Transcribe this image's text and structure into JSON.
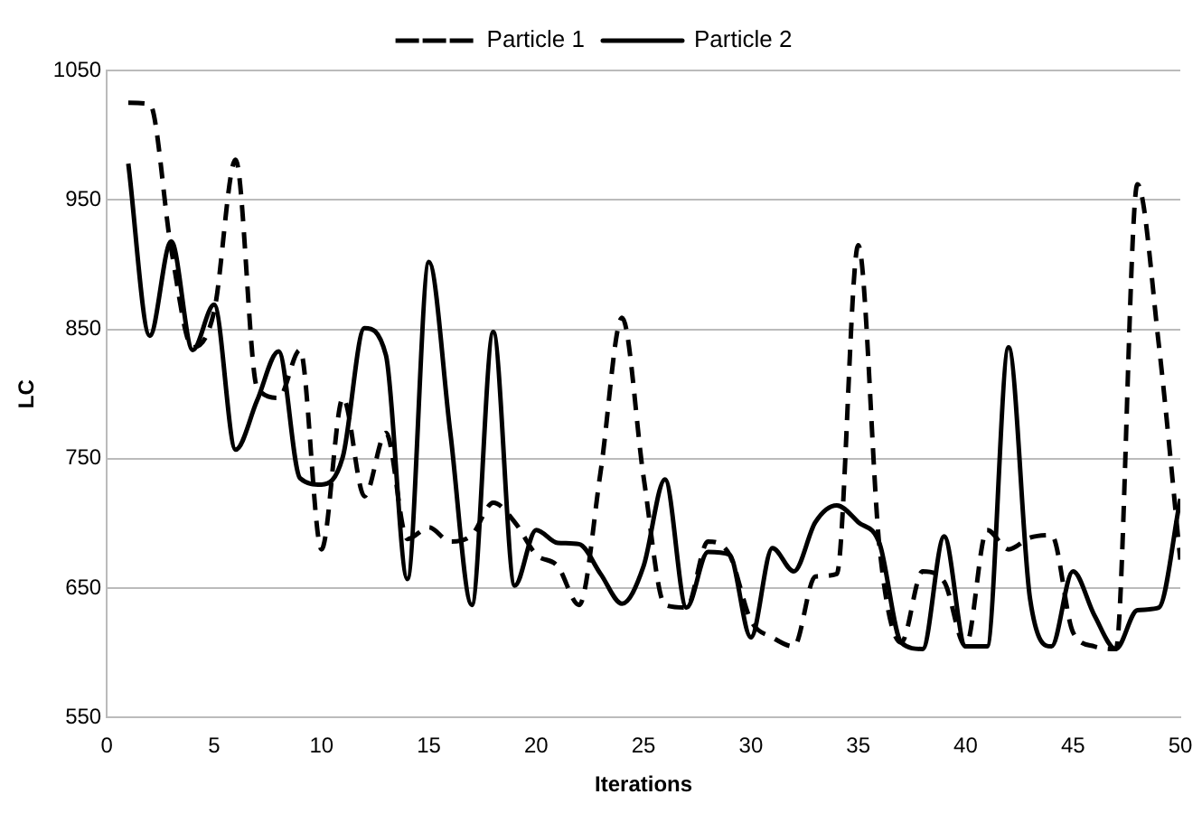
{
  "chart_data": {
    "type": "line",
    "xlabel": "Iterations",
    "ylabel": "LC",
    "x": [
      1,
      2,
      3,
      4,
      5,
      6,
      7,
      8,
      9,
      10,
      11,
      12,
      13,
      14,
      15,
      16,
      17,
      18,
      19,
      20,
      21,
      22,
      23,
      24,
      25,
      26,
      27,
      28,
      29,
      30,
      31,
      32,
      33,
      34,
      35,
      36,
      37,
      38,
      39,
      40,
      41,
      42,
      43,
      44,
      45,
      46,
      47,
      48,
      49,
      50
    ],
    "series": [
      {
        "name": "Particle 1",
        "color": "#000000",
        "line_style": "dashed",
        "values": [
          1025,
          1024,
          912,
          836,
          864,
          981,
          805,
          797,
          834,
          680,
          797,
          721,
          770,
          688,
          697,
          686,
          691,
          716,
          701,
          676,
          667,
          637,
          740,
          859,
          736,
          637,
          635,
          686,
          676,
          625,
          612,
          605,
          659,
          661,
          915,
          680,
          608,
          663,
          655,
          605,
          695,
          680,
          689,
          691,
          616,
          605,
          603,
          962,
          838,
          672
        ]
      },
      {
        "name": "Particle 2",
        "color": "#000000",
        "line_style": "solid",
        "values": [
          978,
          845,
          918,
          834,
          869,
          757,
          795,
          833,
          735,
          730,
          752,
          851,
          830,
          657,
          902,
          770,
          637,
          848,
          652,
          695,
          685,
          684,
          661,
          638,
          667,
          734,
          635,
          678,
          676,
          612,
          681,
          663,
          701,
          714,
          701,
          684,
          608,
          603,
          690,
          605,
          605,
          836,
          642,
          605,
          663,
          629,
          603,
          633,
          635,
          719
        ]
      }
    ],
    "xlim": [
      0,
      50
    ],
    "xticks": [
      0,
      5,
      10,
      15,
      20,
      25,
      30,
      35,
      40,
      45,
      50
    ],
    "ylim": [
      550,
      1050
    ],
    "yticks": [
      550,
      650,
      750,
      850,
      950,
      1050
    ],
    "grid": "y",
    "legend": "top",
    "marker": "none"
  }
}
